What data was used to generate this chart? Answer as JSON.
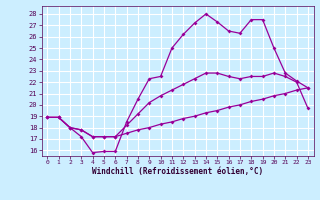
{
  "xlabel": "Windchill (Refroidissement éolien,°C)",
  "xlim": [
    -0.5,
    23.5
  ],
  "ylim": [
    15.5,
    28.7
  ],
  "yticks": [
    16,
    17,
    18,
    19,
    20,
    21,
    22,
    23,
    24,
    25,
    26,
    27,
    28
  ],
  "xticks": [
    0,
    1,
    2,
    3,
    4,
    5,
    6,
    7,
    8,
    9,
    10,
    11,
    12,
    13,
    14,
    15,
    16,
    17,
    18,
    19,
    20,
    21,
    22,
    23
  ],
  "line_color": "#990099",
  "bg_color": "#cceeff",
  "grid_color": "#ffffff",
  "line1_x": [
    0,
    1,
    2,
    3,
    4,
    5,
    6,
    7,
    8,
    9,
    10,
    11,
    12,
    13,
    14,
    15,
    16,
    17,
    18,
    19,
    20,
    21,
    22,
    23
  ],
  "line1_y": [
    18.9,
    18.9,
    18.0,
    17.2,
    15.8,
    15.9,
    15.9,
    18.5,
    20.5,
    22.3,
    22.5,
    25.0,
    26.2,
    27.2,
    28.0,
    27.3,
    26.5,
    26.3,
    27.5,
    27.5,
    25.0,
    22.8,
    22.1,
    21.5
  ],
  "line2_x": [
    0,
    1,
    2,
    3,
    4,
    5,
    6,
    7,
    8,
    9,
    10,
    11,
    12,
    13,
    14,
    15,
    16,
    17,
    18,
    19,
    20,
    21,
    22,
    23
  ],
  "line2_y": [
    18.9,
    18.9,
    18.0,
    17.8,
    17.2,
    17.2,
    17.2,
    17.5,
    17.8,
    18.0,
    18.3,
    18.5,
    18.8,
    19.0,
    19.3,
    19.5,
    19.8,
    20.0,
    20.3,
    20.5,
    20.8,
    21.0,
    21.3,
    21.5
  ],
  "line3_x": [
    0,
    1,
    2,
    3,
    4,
    5,
    6,
    7,
    8,
    9,
    10,
    11,
    12,
    13,
    14,
    15,
    16,
    17,
    18,
    19,
    20,
    21,
    22,
    23
  ],
  "line3_y": [
    18.9,
    18.9,
    18.0,
    17.8,
    17.2,
    17.2,
    17.2,
    18.2,
    19.2,
    20.2,
    20.8,
    21.3,
    21.8,
    22.3,
    22.8,
    22.8,
    22.5,
    22.3,
    22.5,
    22.5,
    22.8,
    22.5,
    22.0,
    19.7
  ]
}
